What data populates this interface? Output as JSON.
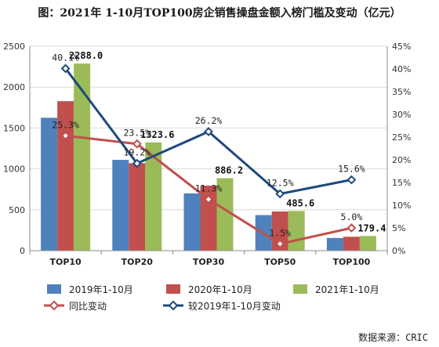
{
  "title": "图：2021年 1-10月TOP100房企销售操盘金额入榜门槛及变动（亿元）",
  "source_label": "数据来源：CRIC",
  "chart_data": {
    "type": "bar",
    "categories": [
      "TOP10",
      "TOP20",
      "TOP30",
      "TOP50",
      "TOP100"
    ],
    "series": [
      {
        "name": "2019年1-10月",
        "type": "bar",
        "axis": "left",
        "color": "#4f81bd",
        "values": [
          1625,
          1110,
          700,
          435,
          155
        ]
      },
      {
        "name": "2020年1-10月",
        "type": "bar",
        "axis": "left",
        "color": "#c0504d",
        "values": [
          1828,
          1070,
          795,
          480,
          170
        ]
      },
      {
        "name": "2021年1-10月",
        "type": "bar",
        "axis": "left",
        "color": "#9bbb59",
        "values": [
          2288.0,
          1323.6,
          886.2,
          485.6,
          179.4
        ]
      },
      {
        "name": "同比变动",
        "type": "line",
        "axis": "right",
        "color": "#c0504d",
        "marker": "diamond-hollow",
        "values": [
          25.3,
          23.5,
          11.3,
          1.5,
          5.0
        ]
      },
      {
        "name": "较2019年1-10月变动",
        "type": "line",
        "axis": "right",
        "color": "#1f497d",
        "marker": "diamond-hollow",
        "values": [
          40.1,
          19.2,
          26.2,
          12.5,
          15.6
        ]
      }
    ],
    "bar_labels": [
      "2288.0",
      "1323.6",
      "886.2",
      "485.6",
      "179.4"
    ],
    "line_labels": {
      "同比变动": [
        "25.3%",
        "23.5%",
        "11.3%",
        "1.5%",
        "5.0%"
      ],
      "较2019年1-10月变动": [
        "40.1%",
        "19.2%",
        "26.2%",
        "12.5%",
        "15.6%"
      ]
    },
    "ylim_left": [
      0,
      2500
    ],
    "left_ticks": [
      "0",
      "500",
      "1000",
      "1500",
      "2000",
      "2500"
    ],
    "ylim_right": [
      0,
      45
    ],
    "right_ticks": [
      "0%",
      "5%",
      "10%",
      "15%",
      "20%",
      "25%",
      "30%",
      "35%",
      "40%",
      "45%"
    ],
    "grid": true,
    "legend_position": "bottom"
  }
}
